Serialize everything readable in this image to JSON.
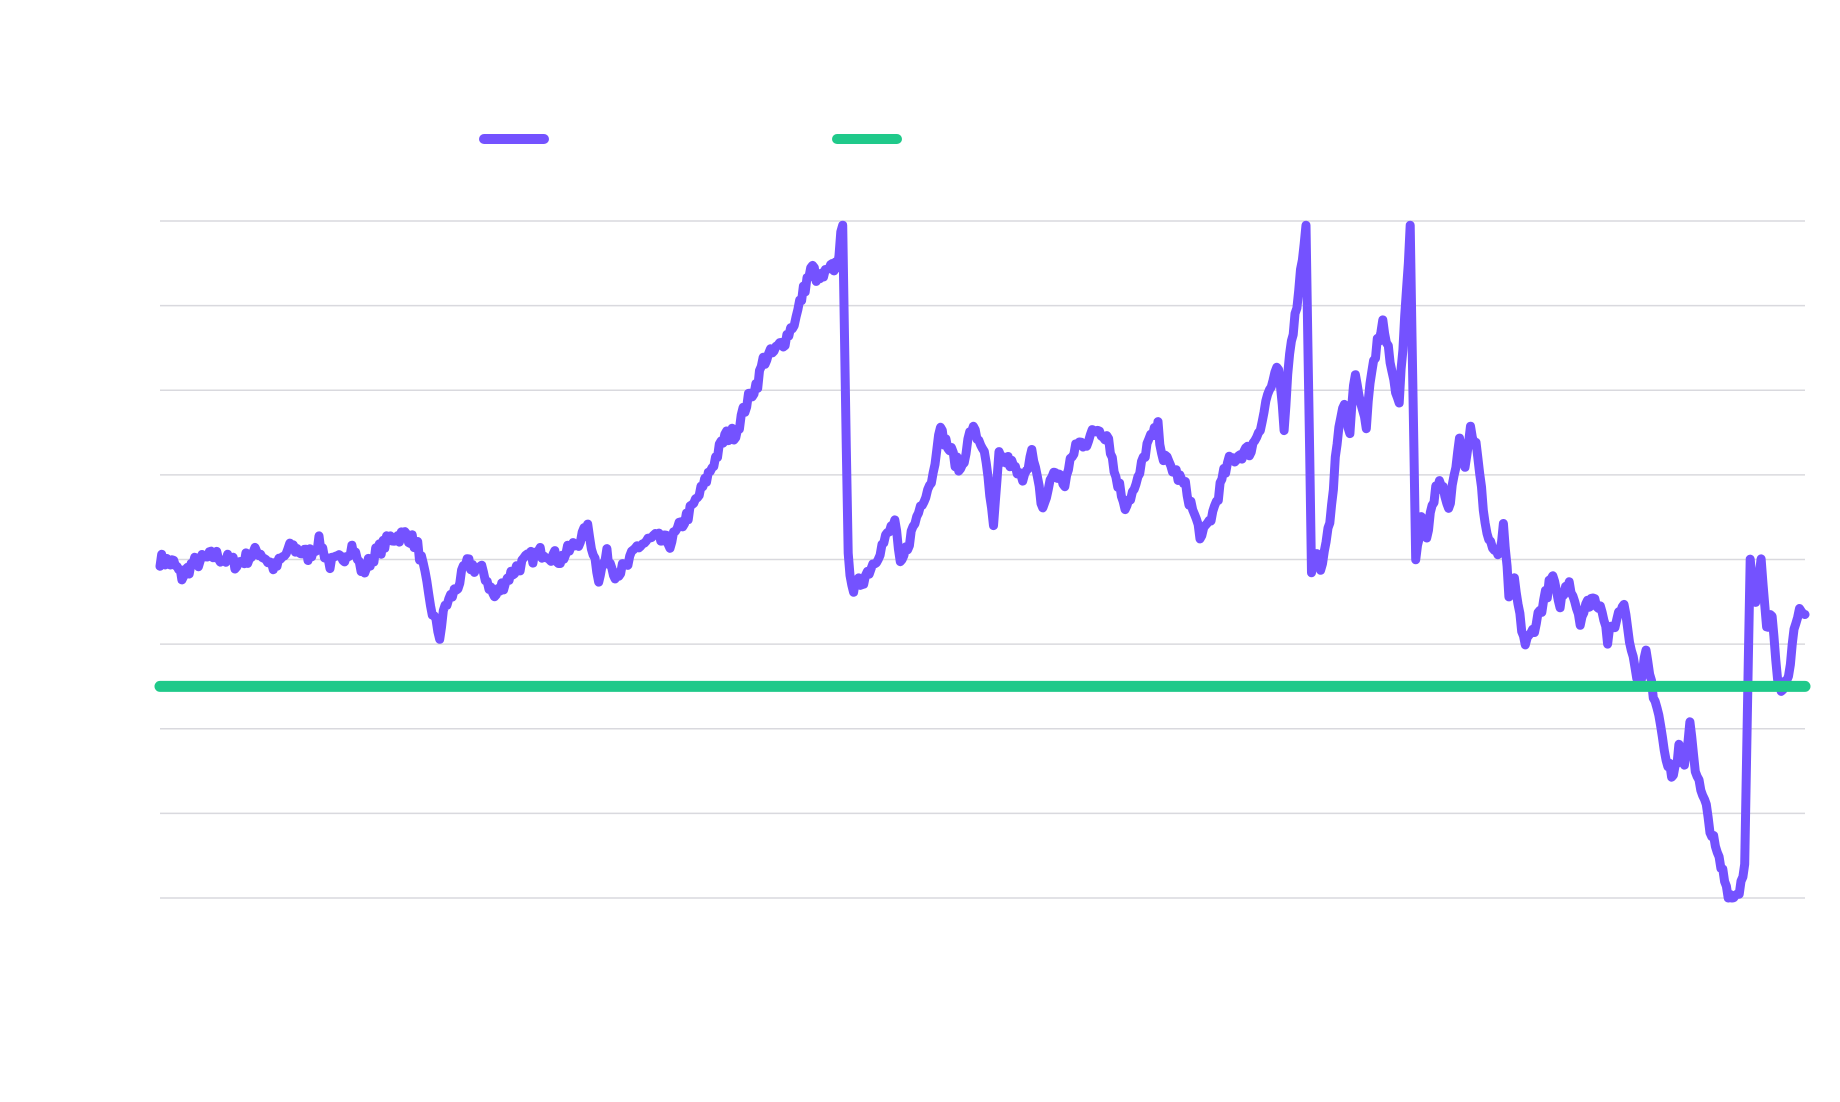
{
  "chart_data": {
    "type": "line",
    "title": "",
    "xlabel": "",
    "ylabel": "",
    "ylim": [
      -3,
      5
    ],
    "gridlines": [
      5,
      4,
      3,
      2,
      1,
      0,
      -1,
      -2,
      -3
    ],
    "grid": true,
    "legend": "top-center",
    "x_count": 600,
    "series": [
      {
        "name": "",
        "color": "#7452ff",
        "keypoints": [
          [
            0,
            1.0
          ],
          [
            5,
            0.95
          ],
          [
            8,
            0.8
          ],
          [
            12,
            0.95
          ],
          [
            20,
            1.05
          ],
          [
            28,
            0.95
          ],
          [
            36,
            1.1
          ],
          [
            42,
            0.9
          ],
          [
            48,
            1.15
          ],
          [
            54,
            1.05
          ],
          [
            58,
            1.2
          ],
          [
            62,
            0.95
          ],
          [
            66,
            1.0
          ],
          [
            70,
            1.15
          ],
          [
            74,
            0.85
          ],
          [
            78,
            1.05
          ],
          [
            84,
            1.25
          ],
          [
            90,
            1.3
          ],
          [
            94,
            1.15
          ],
          [
            96,
            0.9
          ],
          [
            98,
            0.55
          ],
          [
            100,
            0.3
          ],
          [
            102,
            0.1
          ],
          [
            104,
            0.45
          ],
          [
            108,
            0.65
          ],
          [
            112,
            0.95
          ],
          [
            118,
            0.85
          ],
          [
            122,
            0.55
          ],
          [
            126,
            0.75
          ],
          [
            130,
            0.9
          ],
          [
            134,
            1.0
          ],
          [
            140,
            1.1
          ],
          [
            146,
            1.0
          ],
          [
            152,
            1.2
          ],
          [
            156,
            1.35
          ],
          [
            158,
            1.1
          ],
          [
            160,
            0.8
          ],
          [
            163,
            1.05
          ],
          [
            166,
            0.85
          ],
          [
            170,
            0.9
          ],
          [
            174,
            1.15
          ],
          [
            180,
            1.25
          ],
          [
            186,
            1.2
          ],
          [
            190,
            1.4
          ],
          [
            194,
            1.6
          ],
          [
            198,
            1.85
          ],
          [
            202,
            2.15
          ],
          [
            206,
            2.45
          ],
          [
            210,
            2.5
          ],
          [
            214,
            2.85
          ],
          [
            218,
            3.1
          ],
          [
            220,
            3.35
          ],
          [
            224,
            3.45
          ],
          [
            228,
            3.6
          ],
          [
            232,
            3.85
          ],
          [
            234,
            4.1
          ],
          [
            236,
            4.3
          ],
          [
            238,
            4.45
          ],
          [
            240,
            4.3
          ],
          [
            244,
            4.4
          ],
          [
            247,
            4.5
          ],
          [
            249,
            4.95
          ],
          [
            251,
            1.0
          ],
          [
            253,
            0.65
          ],
          [
            256,
            0.75
          ],
          [
            260,
            0.95
          ],
          [
            264,
            1.2
          ],
          [
            268,
            1.45
          ],
          [
            270,
            0.9
          ],
          [
            274,
            1.3
          ],
          [
            278,
            1.7
          ],
          [
            282,
            2.0
          ],
          [
            284,
            2.55
          ],
          [
            288,
            2.3
          ],
          [
            292,
            2.05
          ],
          [
            296,
            2.55
          ],
          [
            300,
            2.35
          ],
          [
            302,
            1.95
          ],
          [
            304,
            1.35
          ],
          [
            306,
            2.2
          ],
          [
            310,
            2.15
          ],
          [
            314,
            1.95
          ],
          [
            318,
            2.25
          ],
          [
            322,
            1.6
          ],
          [
            326,
            2.05
          ],
          [
            330,
            1.9
          ],
          [
            334,
            2.35
          ],
          [
            338,
            2.4
          ],
          [
            342,
            2.55
          ],
          [
            346,
            2.45
          ],
          [
            348,
            2.05
          ],
          [
            352,
            1.65
          ],
          [
            356,
            1.85
          ],
          [
            360,
            2.35
          ],
          [
            364,
            2.55
          ],
          [
            366,
            2.2
          ],
          [
            370,
            2.05
          ],
          [
            374,
            1.85
          ],
          [
            378,
            1.45
          ],
          [
            380,
            1.25
          ],
          [
            384,
            1.55
          ],
          [
            388,
            2.0
          ],
          [
            390,
            2.15
          ],
          [
            394,
            2.25
          ],
          [
            398,
            2.3
          ],
          [
            402,
            2.65
          ],
          [
            404,
            2.95
          ],
          [
            406,
            3.1
          ],
          [
            408,
            3.25
          ],
          [
            410,
            2.5
          ],
          [
            412,
            3.5
          ],
          [
            414,
            3.85
          ],
          [
            416,
            4.4
          ],
          [
            418,
            4.95
          ],
          [
            420,
            0.9
          ],
          [
            422,
            1.05
          ],
          [
            424,
            0.9
          ],
          [
            426,
            1.3
          ],
          [
            428,
            1.9
          ],
          [
            430,
            2.6
          ],
          [
            432,
            2.8
          ],
          [
            434,
            2.55
          ],
          [
            436,
            3.25
          ],
          [
            438,
            2.8
          ],
          [
            440,
            2.6
          ],
          [
            442,
            3.2
          ],
          [
            444,
            3.55
          ],
          [
            446,
            3.8
          ],
          [
            448,
            3.45
          ],
          [
            450,
            3.1
          ],
          [
            452,
            2.9
          ],
          [
            454,
            3.8
          ],
          [
            456,
            4.95
          ],
          [
            458,
            1.0
          ],
          [
            460,
            1.5
          ],
          [
            462,
            1.3
          ],
          [
            464,
            1.65
          ],
          [
            466,
            1.9
          ],
          [
            468,
            1.8
          ],
          [
            470,
            1.55
          ],
          [
            472,
            2.0
          ],
          [
            474,
            2.5
          ],
          [
            476,
            2.15
          ],
          [
            478,
            2.55
          ],
          [
            480,
            2.35
          ],
          [
            482,
            1.8
          ],
          [
            484,
            1.3
          ],
          [
            486,
            1.15
          ],
          [
            488,
            1.0
          ],
          [
            490,
            1.35
          ],
          [
            492,
            0.6
          ],
          [
            494,
            0.75
          ],
          [
            496,
            0.3
          ],
          [
            498,
            0.0
          ],
          [
            500,
            0.1
          ],
          [
            504,
            0.45
          ],
          [
            508,
            0.8
          ],
          [
            510,
            0.45
          ],
          [
            514,
            0.75
          ],
          [
            518,
            0.3
          ],
          [
            522,
            0.55
          ],
          [
            526,
            0.45
          ],
          [
            528,
            0.05
          ],
          [
            530,
            0.2
          ],
          [
            534,
            0.5
          ],
          [
            538,
            -0.3
          ],
          [
            540,
            -0.4
          ],
          [
            542,
            -0.1
          ],
          [
            544,
            -0.5
          ],
          [
            546,
            -0.7
          ],
          [
            548,
            -1.05
          ],
          [
            550,
            -1.45
          ],
          [
            552,
            -1.55
          ],
          [
            554,
            -1.25
          ],
          [
            556,
            -1.5
          ],
          [
            558,
            -0.9
          ],
          [
            560,
            -1.45
          ],
          [
            562,
            -1.75
          ],
          [
            564,
            -1.95
          ],
          [
            566,
            -2.25
          ],
          [
            568,
            -2.5
          ],
          [
            570,
            -2.7
          ],
          [
            572,
            -2.95
          ],
          [
            574,
            -3.0
          ],
          [
            576,
            -2.9
          ],
          [
            578,
            -2.6
          ],
          [
            580,
            1.0
          ],
          [
            582,
            0.45
          ],
          [
            584,
            0.95
          ],
          [
            586,
            0.15
          ],
          [
            588,
            0.35
          ],
          [
            590,
            -0.35
          ],
          [
            592,
            -0.55
          ],
          [
            594,
            -0.3
          ],
          [
            596,
            0.1
          ],
          [
            598,
            0.35
          ],
          [
            600,
            0.35
          ]
        ]
      },
      {
        "name": "",
        "color": "#1fc98a",
        "keypoints": [
          [
            0,
            -0.5
          ],
          [
            600,
            -0.5
          ]
        ]
      }
    ]
  }
}
